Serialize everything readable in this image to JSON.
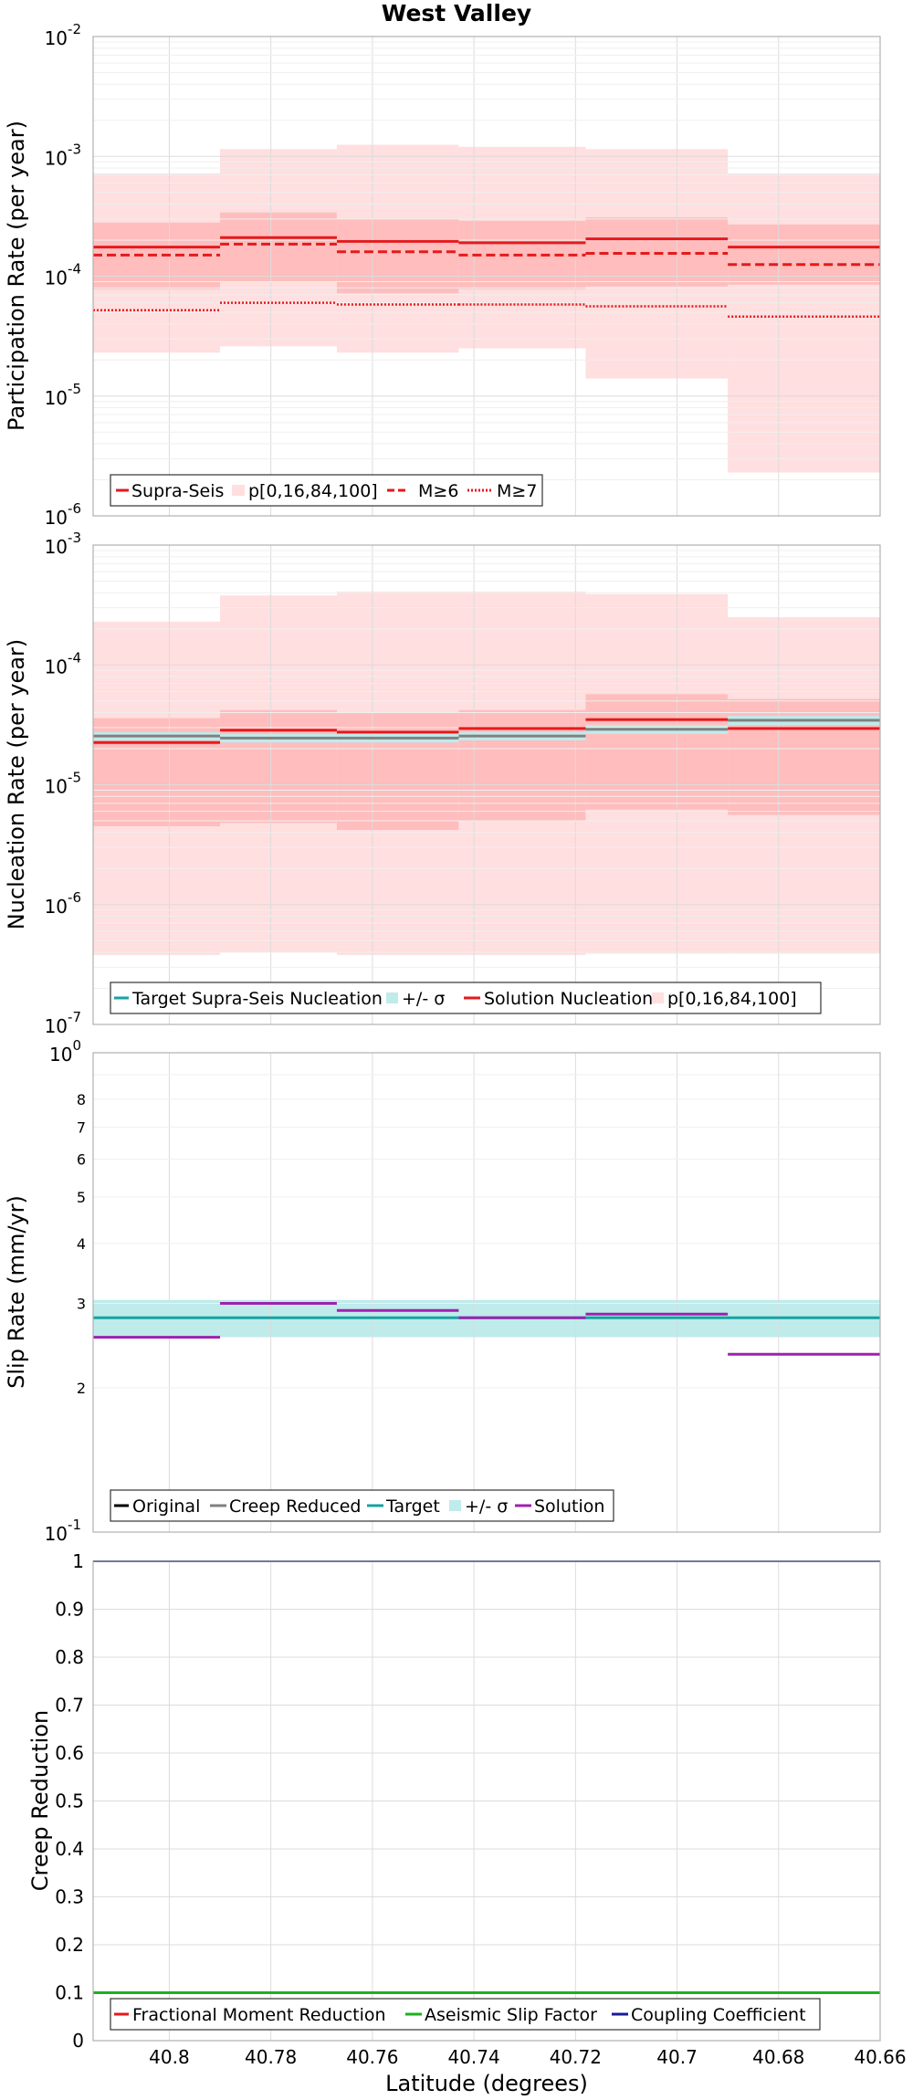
{
  "figure_title": "West Valley",
  "x_axis": {
    "label": "Latitude (degrees)",
    "range": [
      40.815,
      40.66
    ],
    "reversed": true,
    "ticks": [
      40.8,
      40.78,
      40.76,
      40.74,
      40.72,
      40.7,
      40.68,
      40.66
    ],
    "tick_labels": [
      "40.8",
      "40.78",
      "40.76",
      "40.74",
      "40.72",
      "40.7",
      "40.68",
      "40.66"
    ]
  },
  "colors": {
    "red": "#e41a1c",
    "red_band_light": "#ffdfdf",
    "red_band_mid": "#ffbdbd",
    "teal": "#17a2a2",
    "teal_band": "#bfebeb",
    "gray": "#808080",
    "purple": "#a020b0",
    "green": "#1fb01f",
    "navy": "#1a1a99",
    "black": "#000000"
  },
  "chart_data": [
    {
      "type": "line",
      "scale": "log",
      "ylabel": "Participation Rate (per year)",
      "ylim": [
        1e-06,
        0.01
      ],
      "y_tick_labels": [
        {
          "base": "10",
          "exp": "-6"
        },
        {
          "base": "10",
          "exp": "-5"
        },
        {
          "base": "10",
          "exp": "-4"
        },
        {
          "base": "10",
          "exp": "-3"
        },
        {
          "base": "10",
          "exp": "-2"
        }
      ],
      "segments": [
        {
          "x0": 40.815,
          "x1": 40.79,
          "supra_seis": 0.000175,
          "m6": 0.00015,
          "m7": 5.2e-05,
          "p0": 2.3e-05,
          "p16": 7.8e-05,
          "p84": 0.00028,
          "p100": 0.00072
        },
        {
          "x0": 40.79,
          "x1": 40.767,
          "supra_seis": 0.00021,
          "m6": 0.000185,
          "m7": 6e-05,
          "p0": 2.6e-05,
          "p16": 9e-05,
          "p84": 0.00034,
          "p100": 0.00115
        },
        {
          "x0": 40.767,
          "x1": 40.743,
          "supra_seis": 0.000195,
          "m6": 0.00016,
          "m7": 5.8e-05,
          "p0": 2.3e-05,
          "p16": 7.2e-05,
          "p84": 0.0003,
          "p100": 0.00125
        },
        {
          "x0": 40.743,
          "x1": 40.718,
          "supra_seis": 0.00019,
          "m6": 0.00015,
          "m7": 5.8e-05,
          "p0": 2.5e-05,
          "p16": 7.8e-05,
          "p84": 0.00029,
          "p100": 0.0012
        },
        {
          "x0": 40.718,
          "x1": 40.69,
          "supra_seis": 0.000205,
          "m6": 0.000155,
          "m7": 5.6e-05,
          "p0": 1.4e-05,
          "p16": 8.2e-05,
          "p84": 0.00031,
          "p100": 0.00115
        },
        {
          "x0": 40.69,
          "x1": 40.66,
          "supra_seis": 0.000175,
          "m6": 0.000125,
          "m7": 4.6e-05,
          "p0": 2.3e-06,
          "p16": 8.5e-05,
          "p84": 0.00027,
          "p100": 0.00072
        }
      ],
      "legend": [
        "Supra-Seis",
        "p[0,16,84,100]",
        "M≥6",
        "M≥7"
      ]
    },
    {
      "type": "line",
      "scale": "log",
      "ylabel": "Nucleation Rate (per year)",
      "ylim": [
        1e-07,
        0.001
      ],
      "y_tick_labels": [
        {
          "base": "10",
          "exp": "-7"
        },
        {
          "base": "10",
          "exp": "-6"
        },
        {
          "base": "10",
          "exp": "-5"
        },
        {
          "base": "10",
          "exp": "-4"
        },
        {
          "base": "10",
          "exp": "-3"
        }
      ],
      "segments": [
        {
          "x0": 40.815,
          "x1": 40.79,
          "solution": 2.25e-05,
          "target": 2.55e-05,
          "sigma_lo": 2.35e-05,
          "sigma_hi": 2.75e-05,
          "p0": 3.8e-07,
          "p16": 4.5e-06,
          "p84": 3.6e-05,
          "p100": 0.00023
        },
        {
          "x0": 40.79,
          "x1": 40.767,
          "solution": 2.85e-05,
          "target": 2.45e-05,
          "sigma_lo": 2.25e-05,
          "sigma_hi": 2.65e-05,
          "p0": 4e-07,
          "p16": 4.8e-06,
          "p84": 4.2e-05,
          "p100": 0.00038
        },
        {
          "x0": 40.767,
          "x1": 40.743,
          "solution": 2.75e-05,
          "target": 2.45e-05,
          "sigma_lo": 2.25e-05,
          "sigma_hi": 2.65e-05,
          "p0": 3.8e-07,
          "p16": 4.2e-06,
          "p84": 4e-05,
          "p100": 0.00041
        },
        {
          "x0": 40.743,
          "x1": 40.718,
          "solution": 2.95e-05,
          "target": 2.55e-05,
          "sigma_lo": 2.35e-05,
          "sigma_hi": 2.75e-05,
          "p0": 3.8e-07,
          "p16": 5e-06,
          "p84": 4.2e-05,
          "p100": 0.00041
        },
        {
          "x0": 40.718,
          "x1": 40.69,
          "solution": 3.5e-05,
          "target": 2.9e-05,
          "sigma_lo": 2.65e-05,
          "sigma_hi": 3.15e-05,
          "p0": 3.9e-07,
          "p16": 6.2e-06,
          "p84": 5.7e-05,
          "p100": 0.00039
        },
        {
          "x0": 40.69,
          "x1": 40.66,
          "solution": 2.95e-05,
          "target": 3.45e-05,
          "sigma_lo": 3.15e-05,
          "sigma_hi": 3.75e-05,
          "p0": 3.9e-07,
          "p16": 5.6e-06,
          "p84": 5.2e-05,
          "p100": 0.00025
        }
      ],
      "legend": [
        "Target Supra-Seis Nucleation",
        "+/- σ",
        "Solution Nucleation",
        "p[0,16,84,100]"
      ]
    },
    {
      "type": "line",
      "scale": "log",
      "ylabel": "Slip Rate (mm/yr)",
      "ylim": [
        1,
        10
      ],
      "y_tick_labels": [
        {
          "base": "10",
          "exp": "-1"
        },
        {
          "base": "10",
          "exp": "0"
        }
      ],
      "minor_ticks": [
        "2",
        "3",
        "4",
        "5",
        "6",
        "7",
        "8"
      ],
      "target": 2.8,
      "sigma_band": [
        2.55,
        3.05
      ],
      "solution_segments": [
        {
          "x0": 40.815,
          "x1": 40.79,
          "value": 2.55
        },
        {
          "x0": 40.79,
          "x1": 40.767,
          "value": 3.0
        },
        {
          "x0": 40.767,
          "x1": 40.743,
          "value": 2.9
        },
        {
          "x0": 40.743,
          "x1": 40.718,
          "value": 2.8
        },
        {
          "x0": 40.718,
          "x1": 40.69,
          "value": 2.85
        },
        {
          "x0": 40.69,
          "x1": 40.66,
          "value": 2.35
        }
      ],
      "legend": [
        "Original",
        "Creep Reduced",
        "Target",
        "+/- σ",
        "Solution"
      ]
    },
    {
      "type": "line",
      "scale": "linear",
      "ylabel": "Creep Reduction",
      "ylim": [
        0,
        1
      ],
      "y_ticks": [
        0,
        0.1,
        0.2,
        0.3,
        0.4,
        0.5,
        0.6,
        0.7,
        0.8,
        0.9,
        1
      ],
      "y_tick_labels": [
        "0",
        "0.1",
        "0.2",
        "0.3",
        "0.4",
        "0.5",
        "0.6",
        "0.7",
        "0.8",
        "0.9",
        "1"
      ],
      "fractional_moment_reduction": 0.1,
      "aseismic_slip_factor": 0.1,
      "coupling_coefficient": 1.0,
      "legend": [
        "Fractional Moment Reduction",
        "Aseismic Slip Factor",
        "Coupling Coefficient"
      ]
    }
  ]
}
